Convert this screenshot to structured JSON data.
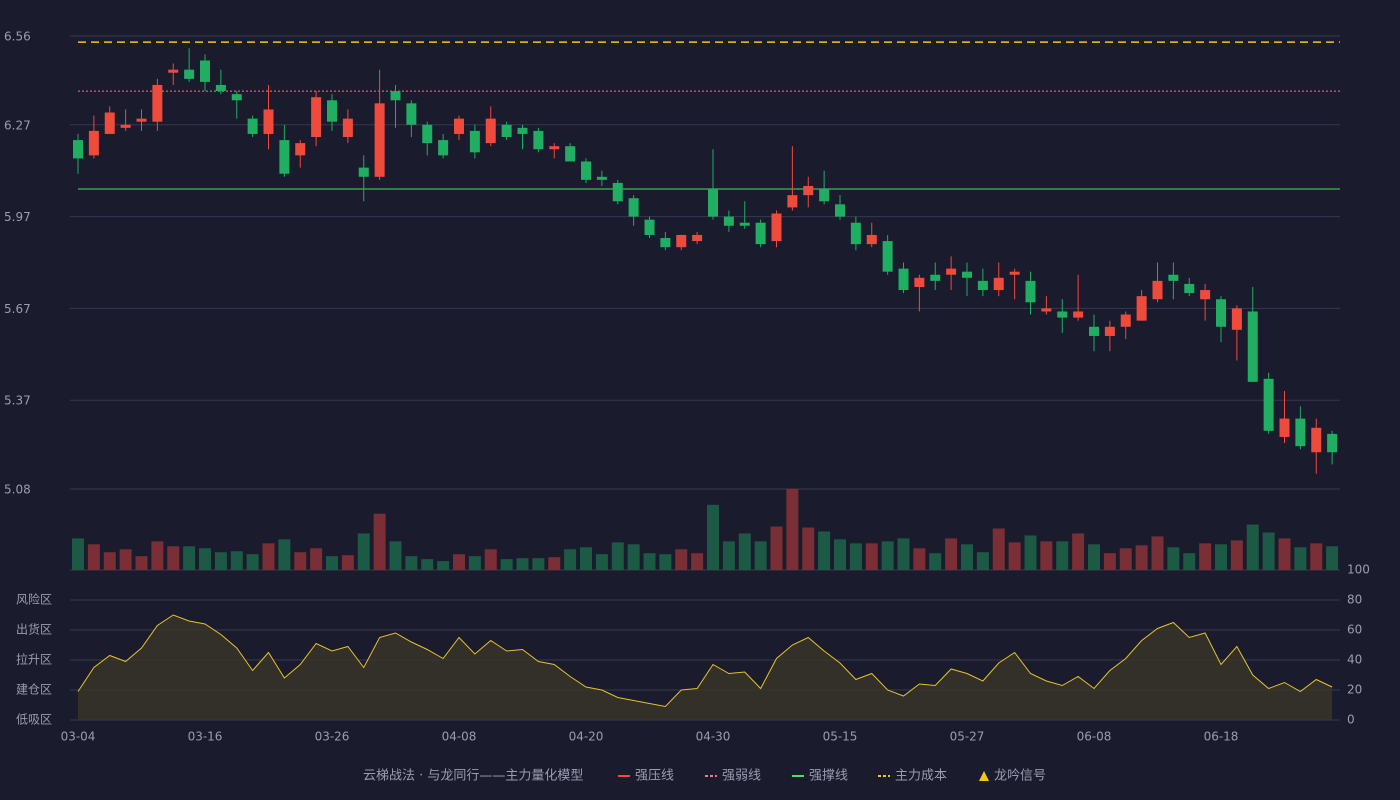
{
  "chart_data": {
    "type": "candlestick",
    "categories": [
      "03-04",
      null,
      null,
      null,
      null,
      null,
      null,
      null,
      "03-16",
      null,
      null,
      null,
      null,
      null,
      null,
      null,
      "03-26",
      null,
      null,
      null,
      null,
      null,
      null,
      null,
      "04-08",
      null,
      null,
      null,
      null,
      null,
      null,
      null,
      "04-20",
      null,
      null,
      null,
      null,
      null,
      null,
      null,
      "04-30",
      null,
      null,
      null,
      null,
      null,
      null,
      null,
      "05-15",
      null,
      null,
      null,
      null,
      null,
      null,
      null,
      "05-27",
      null,
      null,
      null,
      null,
      null,
      null,
      null,
      "06-08",
      null,
      null,
      null,
      null,
      null,
      null,
      null,
      "06-18",
      null,
      null,
      null,
      null,
      null,
      null,
      null
    ],
    "open": [
      6.22,
      6.17,
      6.24,
      6.26,
      6.28,
      6.28,
      6.44,
      6.45,
      6.48,
      6.4,
      6.37,
      6.29,
      6.24,
      6.22,
      6.17,
      6.23,
      6.35,
      6.23,
      6.13,
      6.1,
      6.38,
      6.34,
      6.27,
      6.22,
      6.24,
      6.25,
      6.21,
      6.27,
      6.26,
      6.25,
      6.19,
      6.2,
      6.15,
      6.1,
      6.08,
      6.03,
      5.96,
      5.9,
      5.87,
      5.89,
      6.06,
      5.97,
      5.95,
      5.95,
      5.89,
      6.0,
      6.04,
      6.06,
      6.01,
      5.95,
      5.88,
      5.89,
      5.8,
      5.74,
      5.78,
      5.78,
      5.79,
      5.76,
      5.73,
      5.78,
      5.76,
      5.66,
      5.66,
      5.64,
      5.61,
      5.58,
      5.61,
      5.63,
      5.7,
      5.78,
      5.75,
      5.7,
      5.7,
      5.6,
      5.66,
      5.44,
      5.25,
      5.31,
      5.2,
      5.26
    ],
    "high": [
      6.24,
      6.3,
      6.33,
      6.32,
      6.32,
      6.42,
      6.47,
      6.52,
      6.5,
      6.45,
      6.38,
      6.3,
      6.4,
      6.27,
      6.22,
      6.38,
      6.37,
      6.32,
      6.17,
      6.45,
      6.4,
      6.35,
      6.28,
      6.24,
      6.3,
      6.27,
      6.33,
      6.28,
      6.27,
      6.26,
      6.21,
      6.21,
      6.16,
      6.12,
      6.09,
      6.04,
      5.97,
      5.92,
      5.91,
      5.92,
      6.19,
      5.99,
      6.02,
      5.96,
      5.99,
      6.2,
      6.1,
      6.12,
      6.04,
      5.97,
      5.95,
      5.91,
      5.82,
      5.78,
      5.82,
      5.84,
      5.82,
      5.8,
      5.82,
      5.8,
      5.79,
      5.71,
      5.7,
      5.78,
      5.65,
      5.63,
      5.66,
      5.73,
      5.82,
      5.82,
      5.77,
      5.75,
      5.71,
      5.68,
      5.74,
      5.46,
      5.4,
      5.35,
      5.31,
      5.27
    ],
    "low": [
      6.11,
      6.16,
      6.24,
      6.25,
      6.25,
      6.25,
      6.4,
      6.41,
      6.38,
      6.37,
      6.29,
      6.23,
      6.19,
      6.1,
      6.13,
      6.2,
      6.25,
      6.21,
      6.02,
      6.09,
      6.26,
      6.23,
      6.17,
      6.16,
      6.22,
      6.16,
      6.2,
      6.22,
      6.19,
      6.18,
      6.16,
      6.15,
      6.08,
      6.07,
      6.01,
      5.94,
      5.9,
      5.86,
      5.86,
      5.88,
      5.96,
      5.92,
      5.93,
      5.87,
      5.87,
      5.99,
      6.0,
      6.01,
      5.96,
      5.86,
      5.87,
      5.78,
      5.72,
      5.66,
      5.73,
      5.73,
      5.71,
      5.71,
      5.71,
      5.7,
      5.65,
      5.65,
      5.59,
      5.63,
      5.53,
      5.53,
      5.57,
      5.63,
      5.69,
      5.7,
      5.71,
      5.63,
      5.56,
      5.5,
      5.43,
      5.26,
      5.23,
      5.21,
      5.13,
      5.16
    ],
    "close": [
      6.16,
      6.25,
      6.31,
      6.27,
      6.29,
      6.4,
      6.45,
      6.42,
      6.41,
      6.38,
      6.35,
      6.24,
      6.32,
      6.11,
      6.21,
      6.36,
      6.28,
      6.29,
      6.1,
      6.34,
      6.35,
      6.27,
      6.21,
      6.17,
      6.29,
      6.18,
      6.29,
      6.23,
      6.24,
      6.19,
      6.2,
      6.15,
      6.09,
      6.09,
      6.02,
      5.97,
      5.91,
      5.87,
      5.91,
      5.91,
      5.97,
      5.94,
      5.94,
      5.88,
      5.98,
      6.04,
      6.07,
      6.02,
      5.97,
      5.88,
      5.91,
      5.79,
      5.73,
      5.77,
      5.76,
      5.8,
      5.77,
      5.73,
      5.77,
      5.79,
      5.69,
      5.67,
      5.64,
      5.66,
      5.58,
      5.61,
      5.65,
      5.71,
      5.76,
      5.76,
      5.72,
      5.73,
      5.61,
      5.67,
      5.43,
      5.27,
      5.31,
      5.22,
      5.28,
      5.2
    ],
    "up_color": "#ef4b3c",
    "down_color": "#1fae62",
    "ylim": [
      5.08,
      6.56
    ],
    "yticks": [
      6.56,
      6.27,
      5.97,
      5.67,
      5.37,
      5.08
    ],
    "grid": true,
    "volume": [
      32,
      26,
      18,
      21,
      14,
      29,
      24,
      24,
      22,
      18,
      19,
      16,
      27,
      31,
      18,
      22,
      14,
      15,
      37,
      57,
      29,
      14,
      11,
      9,
      16,
      14,
      21,
      11,
      12,
      12,
      13,
      21,
      23,
      16,
      28,
      26,
      17,
      16,
      21,
      17,
      66,
      29,
      37,
      29,
      44,
      82,
      43,
      39,
      31,
      27,
      27,
      29,
      32,
      22,
      17,
      32,
      26,
      18,
      42,
      28,
      35,
      29,
      29,
      37,
      26,
      17,
      22,
      25,
      34,
      23,
      17,
      27,
      26,
      30,
      46,
      38,
      32,
      23,
      27,
      24
    ],
    "volume_up_color": "#7a2e35",
    "volume_down_color": "#1d5a45",
    "lines": [
      {
        "name": "强压线",
        "color": "#ef4b3c",
        "style": "solid"
      },
      {
        "name": "强弱线",
        "color": "#f07a8a",
        "style": "dotted",
        "value": 6.38
      },
      {
        "name": "强撑线",
        "color": "#4ade60",
        "style": "solid",
        "value": 6.06
      },
      {
        "name": "主力成本",
        "color": "#f5c518",
        "style": "dashed",
        "value": 6.54
      }
    ],
    "signal": {
      "name": "龙吟信号",
      "color": "#f5c518"
    },
    "legend_title": "云梯战法 · 与龙同行——主力量化模型",
    "oscillator": {
      "values": [
        19,
        35,
        43,
        39,
        48,
        63,
        70,
        66,
        64,
        57,
        48,
        33,
        45,
        28,
        37,
        51,
        46,
        49,
        35,
        55,
        58,
        52,
        47,
        41,
        55,
        44,
        53,
        46,
        47,
        39,
        37,
        29,
        22,
        20,
        15,
        13,
        11,
        9,
        20,
        21,
        37,
        31,
        32,
        21,
        41,
        50,
        55,
        46,
        38,
        27,
        31,
        20,
        16,
        24,
        23,
        34,
        31,
        26,
        38,
        45,
        31,
        26,
        23,
        29,
        21,
        33,
        41,
        53,
        61,
        65,
        55,
        58,
        37,
        49,
        30,
        21,
        25,
        19,
        27,
        22
      ],
      "color": "#e6c229",
      "ylim": [
        0,
        100
      ],
      "yticks": [
        0,
        20,
        40,
        60,
        80,
        100
      ],
      "ytick_colors": [
        "#ef4040",
        "#f5a623",
        "#4a8fff",
        "#e040e0",
        "#f5a623",
        "#33dd33"
      ],
      "zones": [
        {
          "label": "低吸区",
          "value": 0,
          "color": "#ef4040"
        },
        {
          "label": "建仓区",
          "value": 20,
          "color": "#f05a4a"
        },
        {
          "label": "拉升区",
          "value": 40,
          "color": "#4a8fff"
        },
        {
          "label": "出货区",
          "value": 60,
          "color": "#e040e0"
        },
        {
          "label": "风险区",
          "value": 80,
          "color": "#f5a623"
        }
      ]
    }
  }
}
